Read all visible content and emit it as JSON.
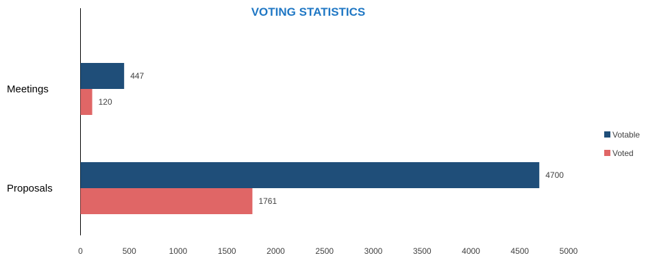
{
  "chart_data": {
    "type": "bar",
    "orientation": "horizontal",
    "title": "VOTING STATISTICS",
    "title_color": "#1f77c4",
    "categories": [
      "Meetings",
      "Proposals"
    ],
    "series": [
      {
        "name": "Votable",
        "values": [
          447,
          4700
        ],
        "color": "#1f4e79"
      },
      {
        "name": "Voted",
        "values": [
          120,
          1761
        ],
        "color": "#e06666"
      }
    ],
    "xlim": [
      0,
      5000
    ],
    "x_ticks": [
      0,
      500,
      1000,
      1500,
      2000,
      2500,
      3000,
      3500,
      4000,
      4500,
      5000
    ],
    "xlabel": "",
    "ylabel": "",
    "grid": false,
    "legend_position": "right",
    "data_labels": true
  }
}
